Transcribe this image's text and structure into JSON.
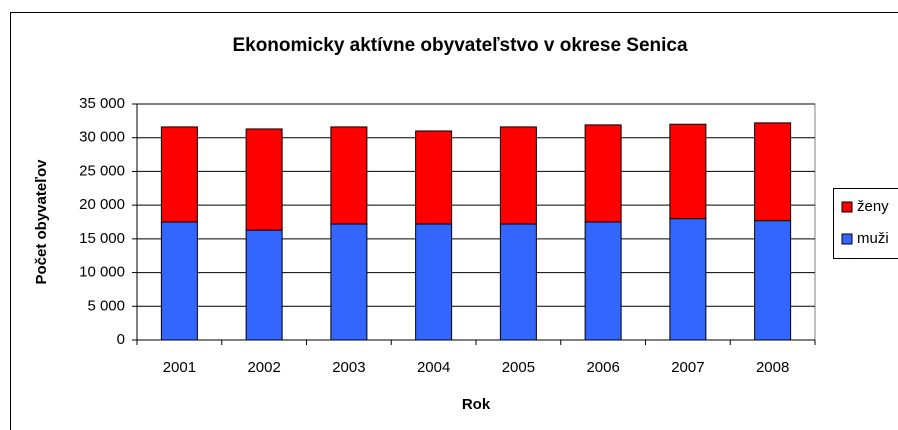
{
  "chart_data": {
    "type": "stacked_bar",
    "title": "Ekonomicky aktívne obyvateľstvo v okrese Senica",
    "x_label": "Rok",
    "y_label": "Počet obyvateľov",
    "categories": [
      "2001",
      "2002",
      "2003",
      "2004",
      "2005",
      "2006",
      "2007",
      "2008"
    ],
    "series": [
      {
        "name": "muži",
        "color": "#3366ff",
        "values": [
          17500,
          16300,
          17200,
          17200,
          17200,
          17500,
          18000,
          17700
        ]
      },
      {
        "name": "ženy",
        "color": "#ff0000",
        "values": [
          14100,
          15000,
          14400,
          13800,
          14400,
          14400,
          14000,
          14500
        ]
      }
    ],
    "ylim": [
      0,
      35000
    ],
    "yticks": [
      0,
      {
        "value": 5000,
        "label": "5 000"
      },
      {
        "value": 10000,
        "label": "10 000"
      },
      {
        "value": 15000,
        "label": "15 000"
      },
      {
        "value": 20000,
        "label": "20 000"
      },
      {
        "value": 25000,
        "label": "25 000"
      },
      {
        "value": 30000,
        "label": "30 000"
      },
      {
        "value": 35000,
        "label": "35 000"
      }
    ],
    "grid": true,
    "legend": "right"
  }
}
